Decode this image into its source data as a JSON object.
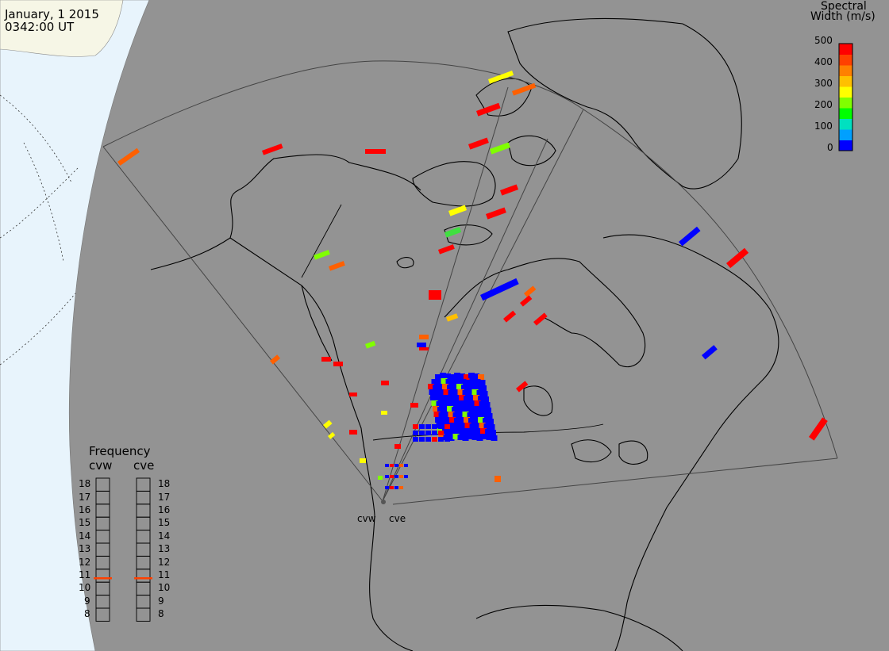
{
  "timestamp": {
    "date": "January, 1 2015",
    "time": "0342:00 UT"
  },
  "colorbar": {
    "title_line1": "Spectral",
    "title_line2": "Width (m/s)",
    "ticks": [
      "500",
      "400",
      "300",
      "200",
      "100",
      "0"
    ],
    "colors": [
      "#0000ff",
      "#00a0ff",
      "#00e0c0",
      "#00ff00",
      "#80ff00",
      "#ffff00",
      "#ffc000",
      "#ff8000",
      "#ff4000",
      "#ff0000"
    ]
  },
  "radars": {
    "west": "cvw",
    "east": "cve"
  },
  "frequency": {
    "title": "Frequency",
    "left_label": "cvw",
    "right_label": "cve",
    "ticks": [
      "18",
      "17",
      "16",
      "15",
      "14",
      "13",
      "12",
      "11",
      "10",
      "9",
      "8"
    ],
    "left_value": 10.8,
    "right_value": 10.8,
    "marker_color": "#ff4000"
  },
  "colors": {
    "background": "#939393",
    "ocean": "#e8f4fc",
    "land_edge": "#f6f6e6"
  }
}
